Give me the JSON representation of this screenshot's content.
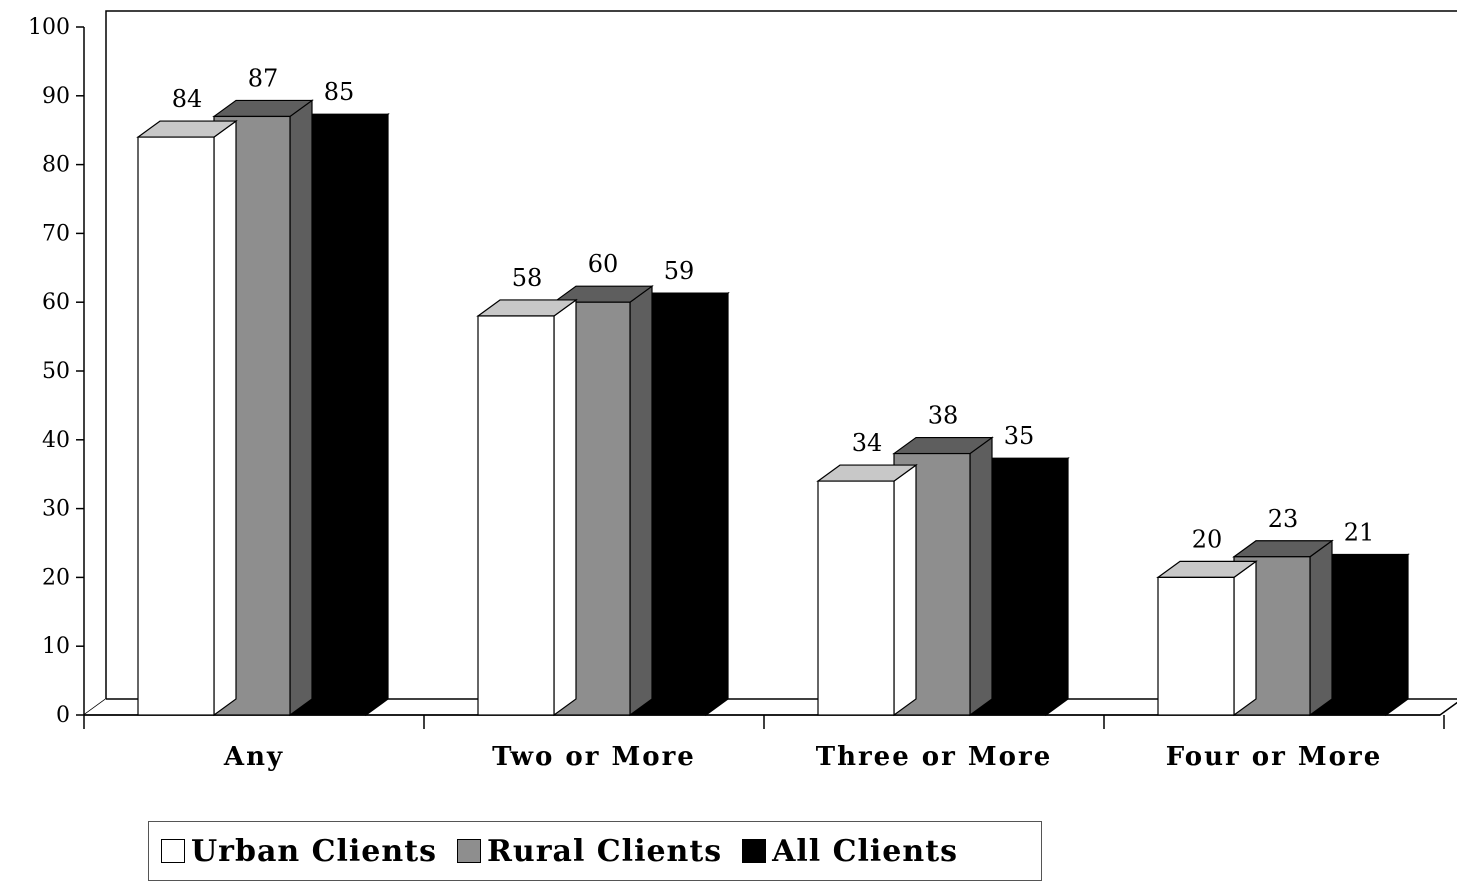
{
  "chart_data": {
    "type": "bar",
    "title": "",
    "xlabel": "",
    "ylabel": "",
    "ylim": [
      0,
      100
    ],
    "yticks": [
      0,
      10,
      20,
      30,
      40,
      50,
      60,
      70,
      80,
      90,
      100
    ],
    "categories": [
      "Any",
      "Two or More",
      "Three or More",
      "Four or More"
    ],
    "series": [
      {
        "name": "Urban Clients",
        "values": [
          84,
          58,
          34,
          20
        ],
        "color": "#ffffff"
      },
      {
        "name": "Rural Clients",
        "values": [
          87,
          60,
          38,
          23
        ],
        "color": "#8e8e8e"
      },
      {
        "name": "All Clients",
        "values": [
          85,
          59,
          35,
          21
        ],
        "color": "#000000"
      }
    ],
    "grid": false,
    "legend_position": "bottom-left",
    "style": "3d"
  },
  "legend": {
    "items": [
      "Urban Clients",
      "Rural Clients",
      "All Clients"
    ]
  }
}
